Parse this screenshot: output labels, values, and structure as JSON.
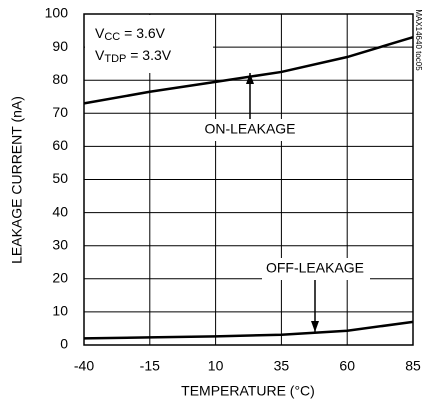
{
  "chart_data": {
    "type": "line",
    "x": [
      -40,
      -15,
      10,
      35,
      60,
      85
    ],
    "series": [
      {
        "name": "ON-LEAKAGE",
        "color": "#000000",
        "values": [
          73,
          76.5,
          79.5,
          82.5,
          87,
          93
        ]
      },
      {
        "name": "OFF-LEAKAGE",
        "color": "#000000",
        "values": [
          2,
          2.3,
          2.6,
          3.1,
          4.3,
          7
        ]
      }
    ],
    "xlim": [
      -40,
      85
    ],
    "xticks": [
      -40,
      -15,
      10,
      35,
      60,
      85
    ],
    "ylim": [
      0,
      100
    ],
    "yticks": [
      0,
      10,
      20,
      30,
      40,
      50,
      60,
      70,
      80,
      90,
      100
    ],
    "xlabel": "TEMPERATURE (°C)",
    "ylabel": "LEAKAGE CURRENT (nA)",
    "conditions": [
      {
        "symbol": "V",
        "subscript": "CC",
        "value": " = 3.6V"
      },
      {
        "symbol": "V",
        "subscript": "TDP",
        "value": " = 3.3V"
      }
    ],
    "grid": true,
    "note": "MAX14640 toc05"
  }
}
